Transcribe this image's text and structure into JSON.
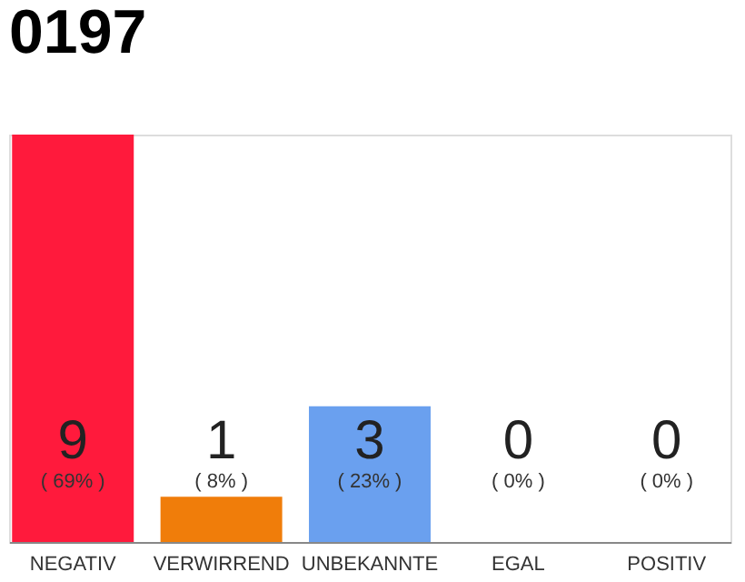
{
  "chart_data": {
    "type": "bar",
    "title": "0197",
    "categories": [
      "NEGATIV",
      "VERWIRREND",
      "UNBEKANNTE",
      "EGAL",
      "POSITIV"
    ],
    "values": [
      9,
      1,
      3,
      0,
      0
    ],
    "colors": [
      "#ff1a3c",
      "#f07d0a",
      "#6aa0ef",
      "#d9d9d9",
      "#d9d9d9"
    ],
    "ylim": [
      0,
      9
    ],
    "tick_labels": "x",
    "data_labels": true,
    "grid": false,
    "annotations": [
      "( 69% )",
      "( 8% )",
      "( 23% )",
      "( 0% )",
      "( 0% )"
    ]
  }
}
